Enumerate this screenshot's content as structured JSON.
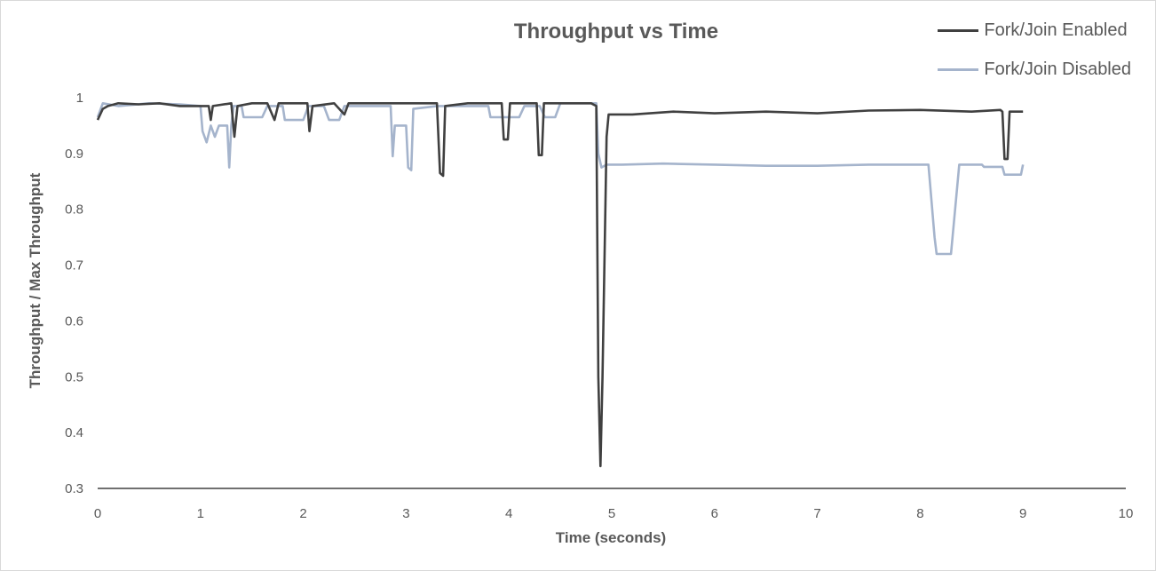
{
  "chart_data": {
    "type": "line",
    "title": "Throughput vs Time",
    "xlabel": "Time (seconds)",
    "ylabel": "Throughput / Max Throughput",
    "xlim": [
      0,
      10
    ],
    "ylim": [
      0.3,
      1.05
    ],
    "xticks": [
      "0",
      "1",
      "2",
      "3",
      "4",
      "5",
      "6",
      "7",
      "8",
      "9",
      "10"
    ],
    "yticks": [
      "0.3",
      "0.4",
      "0.5",
      "0.6",
      "0.7",
      "0.8",
      "0.9",
      "1"
    ],
    "grid": false,
    "legend_position": "top-right",
    "series": [
      {
        "name": "Fork/Join Enabled",
        "color": "#404040",
        "points": [
          [
            0.0,
            0.96
          ],
          [
            0.05,
            0.98
          ],
          [
            0.1,
            0.985
          ],
          [
            0.2,
            0.99
          ],
          [
            0.4,
            0.988
          ],
          [
            0.6,
            0.99
          ],
          [
            0.8,
            0.985
          ],
          [
            1.0,
            0.985
          ],
          [
            1.08,
            0.985
          ],
          [
            1.1,
            0.96
          ],
          [
            1.12,
            0.985
          ],
          [
            1.3,
            0.99
          ],
          [
            1.33,
            0.93
          ],
          [
            1.36,
            0.985
          ],
          [
            1.5,
            0.99
          ],
          [
            1.65,
            0.99
          ],
          [
            1.72,
            0.96
          ],
          [
            1.76,
            0.99
          ],
          [
            1.9,
            0.99
          ],
          [
            2.04,
            0.99
          ],
          [
            2.06,
            0.94
          ],
          [
            2.09,
            0.985
          ],
          [
            2.3,
            0.99
          ],
          [
            2.4,
            0.97
          ],
          [
            2.44,
            0.99
          ],
          [
            2.7,
            0.99
          ],
          [
            3.0,
            0.99
          ],
          [
            3.2,
            0.99
          ],
          [
            3.3,
            0.99
          ],
          [
            3.33,
            0.865
          ],
          [
            3.36,
            0.86
          ],
          [
            3.38,
            0.985
          ],
          [
            3.6,
            0.99
          ],
          [
            3.8,
            0.99
          ],
          [
            3.93,
            0.99
          ],
          [
            3.95,
            0.925
          ],
          [
            3.99,
            0.925
          ],
          [
            4.01,
            0.99
          ],
          [
            4.2,
            0.99
          ],
          [
            4.27,
            0.99
          ],
          [
            4.29,
            0.897
          ],
          [
            4.32,
            0.897
          ],
          [
            4.34,
            0.99
          ],
          [
            4.6,
            0.99
          ],
          [
            4.8,
            0.99
          ],
          [
            4.85,
            0.985
          ],
          [
            4.87,
            0.5
          ],
          [
            4.89,
            0.34
          ],
          [
            4.91,
            0.5
          ],
          [
            4.95,
            0.93
          ],
          [
            4.97,
            0.97
          ],
          [
            5.2,
            0.97
          ],
          [
            5.6,
            0.975
          ],
          [
            6.0,
            0.972
          ],
          [
            6.5,
            0.975
          ],
          [
            7.0,
            0.972
          ],
          [
            7.5,
            0.977
          ],
          [
            8.0,
            0.978
          ],
          [
            8.5,
            0.975
          ],
          [
            8.78,
            0.978
          ],
          [
            8.8,
            0.975
          ],
          [
            8.82,
            0.89
          ],
          [
            8.85,
            0.89
          ],
          [
            8.87,
            0.975
          ],
          [
            9.0,
            0.975
          ]
        ]
      },
      {
        "name": "Fork/Join Disabled",
        "color": "#a5b4cc",
        "points": [
          [
            0.0,
            0.965
          ],
          [
            0.05,
            0.99
          ],
          [
            0.2,
            0.985
          ],
          [
            0.5,
            0.99
          ],
          [
            0.8,
            0.988
          ],
          [
            1.0,
            0.985
          ],
          [
            1.02,
            0.94
          ],
          [
            1.06,
            0.92
          ],
          [
            1.1,
            0.95
          ],
          [
            1.14,
            0.93
          ],
          [
            1.18,
            0.95
          ],
          [
            1.26,
            0.95
          ],
          [
            1.28,
            0.875
          ],
          [
            1.3,
            0.95
          ],
          [
            1.32,
            0.985
          ],
          [
            1.4,
            0.985
          ],
          [
            1.42,
            0.965
          ],
          [
            1.6,
            0.965
          ],
          [
            1.65,
            0.985
          ],
          [
            1.8,
            0.985
          ],
          [
            1.82,
            0.96
          ],
          [
            2.0,
            0.96
          ],
          [
            2.05,
            0.985
          ],
          [
            2.2,
            0.985
          ],
          [
            2.25,
            0.96
          ],
          [
            2.35,
            0.96
          ],
          [
            2.4,
            0.985
          ],
          [
            2.7,
            0.985
          ],
          [
            2.85,
            0.985
          ],
          [
            2.87,
            0.895
          ],
          [
            2.89,
            0.95
          ],
          [
            3.0,
            0.95
          ],
          [
            3.02,
            0.875
          ],
          [
            3.05,
            0.87
          ],
          [
            3.07,
            0.98
          ],
          [
            3.3,
            0.985
          ],
          [
            3.6,
            0.985
          ],
          [
            3.8,
            0.985
          ],
          [
            3.82,
            0.965
          ],
          [
            4.1,
            0.965
          ],
          [
            4.15,
            0.985
          ],
          [
            4.3,
            0.985
          ],
          [
            4.35,
            0.965
          ],
          [
            4.45,
            0.965
          ],
          [
            4.5,
            0.99
          ],
          [
            4.85,
            0.99
          ],
          [
            4.87,
            0.9
          ],
          [
            4.9,
            0.875
          ],
          [
            4.95,
            0.88
          ],
          [
            5.1,
            0.88
          ],
          [
            5.5,
            0.882
          ],
          [
            6.0,
            0.88
          ],
          [
            6.5,
            0.878
          ],
          [
            7.0,
            0.878
          ],
          [
            7.5,
            0.88
          ],
          [
            8.0,
            0.88
          ],
          [
            8.08,
            0.88
          ],
          [
            8.14,
            0.75
          ],
          [
            8.16,
            0.72
          ],
          [
            8.3,
            0.72
          ],
          [
            8.38,
            0.88
          ],
          [
            8.6,
            0.88
          ],
          [
            8.62,
            0.876
          ],
          [
            8.8,
            0.876
          ],
          [
            8.82,
            0.862
          ],
          [
            8.98,
            0.862
          ],
          [
            9.0,
            0.88
          ]
        ]
      }
    ]
  }
}
